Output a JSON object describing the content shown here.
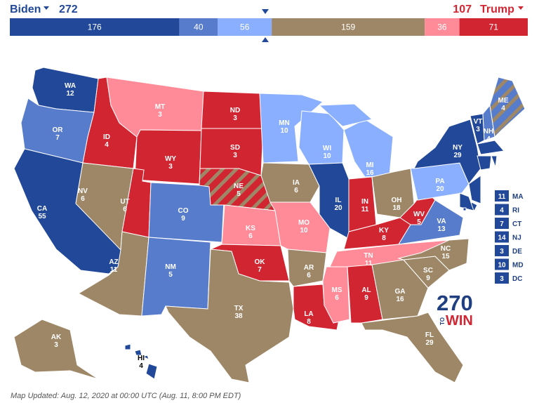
{
  "header": {
    "left": {
      "name": "Biden",
      "votes": 272,
      "color": "#22489a"
    },
    "right": {
      "name": "Trump",
      "votes": 107,
      "color": "#d22532"
    },
    "bar": [
      {
        "value": 176,
        "color": "#22489a"
      },
      {
        "value": 40,
        "color": "#577ccc"
      },
      {
        "value": 56,
        "color": "#8aafff"
      },
      {
        "value": 159,
        "color": "#9e8767"
      },
      {
        "value": 36,
        "color": "#ff8b98"
      },
      {
        "value": 71,
        "color": "#d22532"
      }
    ]
  },
  "states": [
    {
      "abbr": "WA",
      "ev": 12,
      "color": "#22489a"
    },
    {
      "abbr": "OR",
      "ev": 7,
      "color": "#577ccc"
    },
    {
      "abbr": "CA",
      "ev": 55,
      "color": "#22489a"
    },
    {
      "abbr": "ID",
      "ev": 4,
      "color": "#d22532"
    },
    {
      "abbr": "NV",
      "ev": 6,
      "color": "#9e8767"
    },
    {
      "abbr": "MT",
      "ev": 3,
      "color": "#ff8b98"
    },
    {
      "abbr": "WY",
      "ev": 3,
      "color": "#d22532"
    },
    {
      "abbr": "UT",
      "ev": 6,
      "color": "#d22532"
    },
    {
      "abbr": "CO",
      "ev": 9,
      "color": "#577ccc"
    },
    {
      "abbr": "AZ",
      "ev": 11,
      "color": "#9e8767"
    },
    {
      "abbr": "NM",
      "ev": 5,
      "color": "#577ccc"
    },
    {
      "abbr": "ND",
      "ev": 3,
      "color": "#d22532"
    },
    {
      "abbr": "SD",
      "ev": 3,
      "color": "#d22532"
    },
    {
      "abbr": "NE",
      "ev": 5,
      "color": "#d22532",
      "split_color": "#9e8767"
    },
    {
      "abbr": "KS",
      "ev": 6,
      "color": "#ff8b98"
    },
    {
      "abbr": "OK",
      "ev": 7,
      "color": "#d22532"
    },
    {
      "abbr": "TX",
      "ev": 38,
      "color": "#9e8767"
    },
    {
      "abbr": "MN",
      "ev": 10,
      "color": "#8aafff"
    },
    {
      "abbr": "IA",
      "ev": 6,
      "color": "#9e8767"
    },
    {
      "abbr": "MO",
      "ev": 10,
      "color": "#ff8b98"
    },
    {
      "abbr": "AR",
      "ev": 6,
      "color": "#9e8767"
    },
    {
      "abbr": "LA",
      "ev": 8,
      "color": "#d22532"
    },
    {
      "abbr": "WI",
      "ev": 10,
      "color": "#8aafff"
    },
    {
      "abbr": "MI",
      "ev": 16,
      "color": "#8aafff"
    },
    {
      "abbr": "IL",
      "ev": 20,
      "color": "#22489a"
    },
    {
      "abbr": "IN",
      "ev": 11,
      "color": "#d22532"
    },
    {
      "abbr": "OH",
      "ev": 18,
      "color": "#9e8767"
    },
    {
      "abbr": "KY",
      "ev": 8,
      "color": "#d22532"
    },
    {
      "abbr": "WV",
      "ev": 5,
      "color": "#d22532"
    },
    {
      "abbr": "VA",
      "ev": 13,
      "color": "#577ccc"
    },
    {
      "abbr": "TN",
      "ev": 11,
      "color": "#ff8b98"
    },
    {
      "abbr": "MS",
      "ev": 6,
      "color": "#ff8b98"
    },
    {
      "abbr": "AL",
      "ev": 9,
      "color": "#d22532"
    },
    {
      "abbr": "GA",
      "ev": 16,
      "color": "#9e8767"
    },
    {
      "abbr": "FL",
      "ev": 29,
      "color": "#9e8767"
    },
    {
      "abbr": "SC",
      "ev": 9,
      "color": "#9e8767"
    },
    {
      "abbr": "NC",
      "ev": 15,
      "color": "#9e8767"
    },
    {
      "abbr": "PA",
      "ev": 20,
      "color": "#8aafff"
    },
    {
      "abbr": "NY",
      "ev": 29,
      "color": "#22489a"
    },
    {
      "abbr": "VT",
      "ev": 3,
      "color": "#22489a"
    },
    {
      "abbr": "NH",
      "ev": 4,
      "color": "#577ccc"
    },
    {
      "abbr": "ME",
      "ev": 4,
      "color": "#577ccc",
      "split_color": "#9e8767"
    },
    {
      "abbr": "MA",
      "ev": 11,
      "color": "#22489a"
    },
    {
      "abbr": "RI",
      "ev": 4,
      "color": "#22489a"
    },
    {
      "abbr": "CT",
      "ev": 7,
      "color": "#22489a"
    },
    {
      "abbr": "NJ",
      "ev": 14,
      "color": "#22489a"
    },
    {
      "abbr": "DE",
      "ev": 3,
      "color": "#22489a"
    },
    {
      "abbr": "MD",
      "ev": 10,
      "color": "#22489a"
    },
    {
      "abbr": "DC",
      "ev": 3,
      "color": "#22489a"
    },
    {
      "abbr": "AK",
      "ev": 3,
      "color": "#9e8767"
    },
    {
      "abbr": "HI",
      "ev": 4,
      "color": "#22489a"
    }
  ],
  "logo": {
    "number": "270",
    "small": "TO",
    "word": "WIN"
  },
  "footer": "Map Updated: Aug. 12, 2020 at 00:00 UTC (Aug. 11, 8:00 PM EDT)"
}
